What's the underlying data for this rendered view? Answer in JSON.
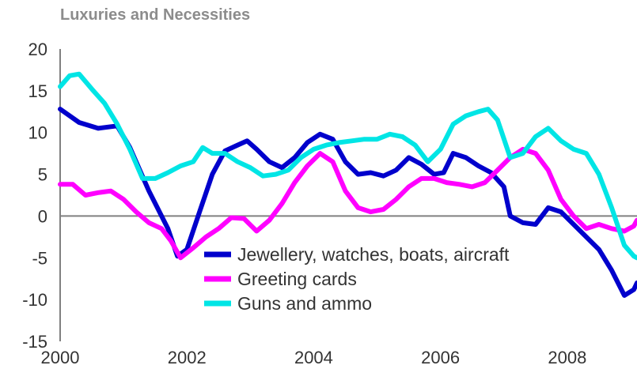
{
  "chart_data": {
    "type": "line",
    "title": "Luxuries and Necessities",
    "xlabel": "",
    "ylabel": "",
    "xlim": [
      2000,
      2009.1
    ],
    "ylim": [
      -15,
      20
    ],
    "x_ticks": [
      "2000",
      "2002",
      "2004",
      "2006",
      "2008"
    ],
    "y_ticks": [
      "20",
      "15",
      "10",
      "5",
      "0",
      "-5",
      "-10",
      "-15"
    ],
    "legend_position": "bottom-center",
    "grid": false,
    "series": [
      {
        "name": "Jewellery, watches, boats, aircraft",
        "color": "#0000cc",
        "points": [
          [
            2000.0,
            12.8
          ],
          [
            2000.3,
            11.2
          ],
          [
            2000.6,
            10.5
          ],
          [
            2000.9,
            10.8
          ],
          [
            2001.1,
            8.2
          ],
          [
            2001.4,
            3.0
          ],
          [
            2001.7,
            -1.5
          ],
          [
            2001.85,
            -4.8
          ],
          [
            2002.0,
            -4.0
          ],
          [
            2002.2,
            0.5
          ],
          [
            2002.4,
            5.0
          ],
          [
            2002.6,
            7.8
          ],
          [
            2002.8,
            8.5
          ],
          [
            2002.95,
            9.0
          ],
          [
            2003.1,
            8.0
          ],
          [
            2003.3,
            6.5
          ],
          [
            2003.5,
            5.8
          ],
          [
            2003.7,
            7.0
          ],
          [
            2003.9,
            8.8
          ],
          [
            2004.1,
            9.8
          ],
          [
            2004.3,
            9.2
          ],
          [
            2004.5,
            6.5
          ],
          [
            2004.7,
            5.0
          ],
          [
            2004.9,
            5.2
          ],
          [
            2005.1,
            4.8
          ],
          [
            2005.3,
            5.5
          ],
          [
            2005.5,
            7.0
          ],
          [
            2005.7,
            6.2
          ],
          [
            2005.9,
            5.0
          ],
          [
            2006.05,
            5.2
          ],
          [
            2006.2,
            7.5
          ],
          [
            2006.4,
            7.0
          ],
          [
            2006.6,
            6.0
          ],
          [
            2006.8,
            5.2
          ],
          [
            2007.0,
            3.5
          ],
          [
            2007.1,
            0.0
          ],
          [
            2007.3,
            -0.8
          ],
          [
            2007.5,
            -1.0
          ],
          [
            2007.7,
            1.0
          ],
          [
            2007.9,
            0.5
          ],
          [
            2008.1,
            -1.0
          ],
          [
            2008.3,
            -2.5
          ],
          [
            2008.5,
            -4.0
          ],
          [
            2008.7,
            -6.5
          ],
          [
            2008.9,
            -9.5
          ],
          [
            2009.05,
            -8.8
          ],
          [
            2009.1,
            -8.0
          ]
        ]
      },
      {
        "name": "Greeting cards",
        "color": "#ff00ff",
        "points": [
          [
            2000.0,
            3.8
          ],
          [
            2000.2,
            3.8
          ],
          [
            2000.4,
            2.5
          ],
          [
            2000.6,
            2.8
          ],
          [
            2000.8,
            3.0
          ],
          [
            2001.0,
            2.0
          ],
          [
            2001.2,
            0.5
          ],
          [
            2001.4,
            -0.8
          ],
          [
            2001.6,
            -1.5
          ],
          [
            2001.75,
            -3.0
          ],
          [
            2001.9,
            -5.0
          ],
          [
            2002.1,
            -3.8
          ],
          [
            2002.3,
            -2.5
          ],
          [
            2002.5,
            -1.5
          ],
          [
            2002.7,
            -0.2
          ],
          [
            2002.9,
            -0.3
          ],
          [
            2003.1,
            -1.8
          ],
          [
            2003.3,
            -0.5
          ],
          [
            2003.5,
            1.5
          ],
          [
            2003.7,
            4.0
          ],
          [
            2003.9,
            6.0
          ],
          [
            2004.1,
            7.5
          ],
          [
            2004.3,
            6.5
          ],
          [
            2004.5,
            3.0
          ],
          [
            2004.7,
            1.0
          ],
          [
            2004.9,
            0.5
          ],
          [
            2005.1,
            0.8
          ],
          [
            2005.3,
            2.0
          ],
          [
            2005.5,
            3.5
          ],
          [
            2005.7,
            4.5
          ],
          [
            2005.9,
            4.5
          ],
          [
            2006.1,
            4.0
          ],
          [
            2006.3,
            3.8
          ],
          [
            2006.5,
            3.5
          ],
          [
            2006.7,
            4.0
          ],
          [
            2006.9,
            5.5
          ],
          [
            2007.1,
            7.0
          ],
          [
            2007.3,
            8.0
          ],
          [
            2007.5,
            7.5
          ],
          [
            2007.7,
            5.5
          ],
          [
            2007.9,
            2.0
          ],
          [
            2008.1,
            0.0
          ],
          [
            2008.3,
            -1.5
          ],
          [
            2008.5,
            -1.0
          ],
          [
            2008.7,
            -1.5
          ],
          [
            2008.9,
            -1.8
          ],
          [
            2009.05,
            -1.2
          ],
          [
            2009.1,
            -0.5
          ]
        ]
      },
      {
        "name": "Guns and ammo",
        "color": "#00e5e5",
        "points": [
          [
            2000.0,
            15.5
          ],
          [
            2000.15,
            16.8
          ],
          [
            2000.3,
            17.0
          ],
          [
            2000.5,
            15.2
          ],
          [
            2000.7,
            13.5
          ],
          [
            2000.9,
            11.0
          ],
          [
            2001.1,
            8.0
          ],
          [
            2001.3,
            4.5
          ],
          [
            2001.5,
            4.5
          ],
          [
            2001.7,
            5.2
          ],
          [
            2001.9,
            6.0
          ],
          [
            2002.1,
            6.5
          ],
          [
            2002.25,
            8.2
          ],
          [
            2002.4,
            7.5
          ],
          [
            2002.6,
            7.5
          ],
          [
            2002.8,
            6.5
          ],
          [
            2003.0,
            5.8
          ],
          [
            2003.2,
            4.8
          ],
          [
            2003.4,
            5.0
          ],
          [
            2003.6,
            5.5
          ],
          [
            2003.8,
            7.0
          ],
          [
            2004.0,
            8.0
          ],
          [
            2004.2,
            8.5
          ],
          [
            2004.4,
            8.8
          ],
          [
            2004.6,
            9.0
          ],
          [
            2004.8,
            9.2
          ],
          [
            2005.0,
            9.2
          ],
          [
            2005.2,
            9.8
          ],
          [
            2005.4,
            9.5
          ],
          [
            2005.6,
            8.5
          ],
          [
            2005.8,
            6.5
          ],
          [
            2006.0,
            8.0
          ],
          [
            2006.2,
            11.0
          ],
          [
            2006.4,
            12.0
          ],
          [
            2006.6,
            12.5
          ],
          [
            2006.75,
            12.8
          ],
          [
            2006.9,
            11.5
          ],
          [
            2007.1,
            7.0
          ],
          [
            2007.3,
            7.5
          ],
          [
            2007.5,
            9.5
          ],
          [
            2007.7,
            10.5
          ],
          [
            2007.9,
            9.0
          ],
          [
            2008.1,
            8.0
          ],
          [
            2008.3,
            7.5
          ],
          [
            2008.5,
            5.0
          ],
          [
            2008.7,
            1.0
          ],
          [
            2008.9,
            -3.5
          ],
          [
            2009.05,
            -4.8
          ],
          [
            2009.1,
            -5.0
          ]
        ]
      }
    ]
  }
}
